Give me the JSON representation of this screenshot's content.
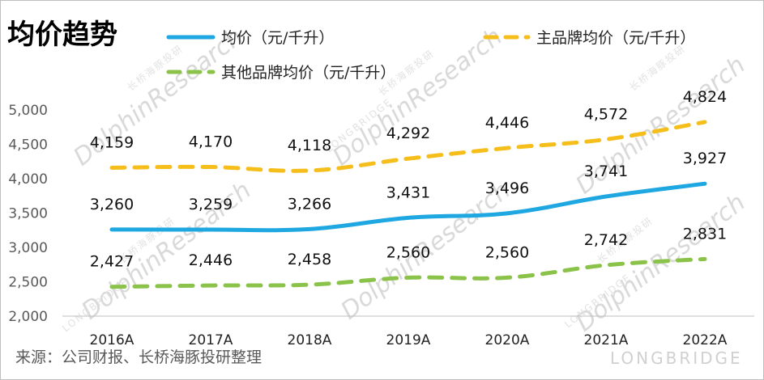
{
  "title": "均价趋势",
  "source": "来源：公司财报、长桥海豚投研整理",
  "watermark": {
    "text": "DolphinResearch",
    "sub_text": "长桥海豚投研",
    "sub_text_en": "LONGBRIDGE",
    "logo_text": "LONGBRIDGE"
  },
  "chart_data": {
    "type": "line",
    "title": "均价趋势",
    "categories": [
      "2016A",
      "2017A",
      "2018A",
      "2019A",
      "2020A",
      "2021A",
      "2022A"
    ],
    "series": [
      {
        "name": "均价（元/千升）",
        "values": [
          3260,
          3259,
          3266,
          3431,
          3496,
          3741,
          3927
        ],
        "labels": [
          "3,260",
          "3,259",
          "3,266",
          "3,431",
          "3,496",
          "3,741",
          "3,927"
        ],
        "color": "#1ea7e1",
        "style": "solid"
      },
      {
        "name": "主品牌均价（元/千升）",
        "values": [
          4159,
          4170,
          4118,
          4292,
          4446,
          4572,
          4824
        ],
        "labels": [
          "4,159",
          "4,170",
          "4,118",
          "4,292",
          "4,446",
          "4,572",
          "4,824"
        ],
        "color": "#f5be1b",
        "style": "dashed"
      },
      {
        "name": "其他品牌均价（元/千升）",
        "values": [
          2427,
          2446,
          2458,
          2560,
          2560,
          2742,
          2831
        ],
        "labels": [
          "2,427",
          "2,446",
          "2,458",
          "2,560",
          "2,560",
          "2,742",
          "2,831"
        ],
        "color": "#8bc34a",
        "style": "dashed"
      }
    ],
    "yticks": [
      "2,000",
      "2,500",
      "3,000",
      "3,500",
      "4,000",
      "4,500",
      "5,000"
    ],
    "ylim": [
      2000,
      5000
    ],
    "grid": false,
    "legend_position": "top"
  }
}
